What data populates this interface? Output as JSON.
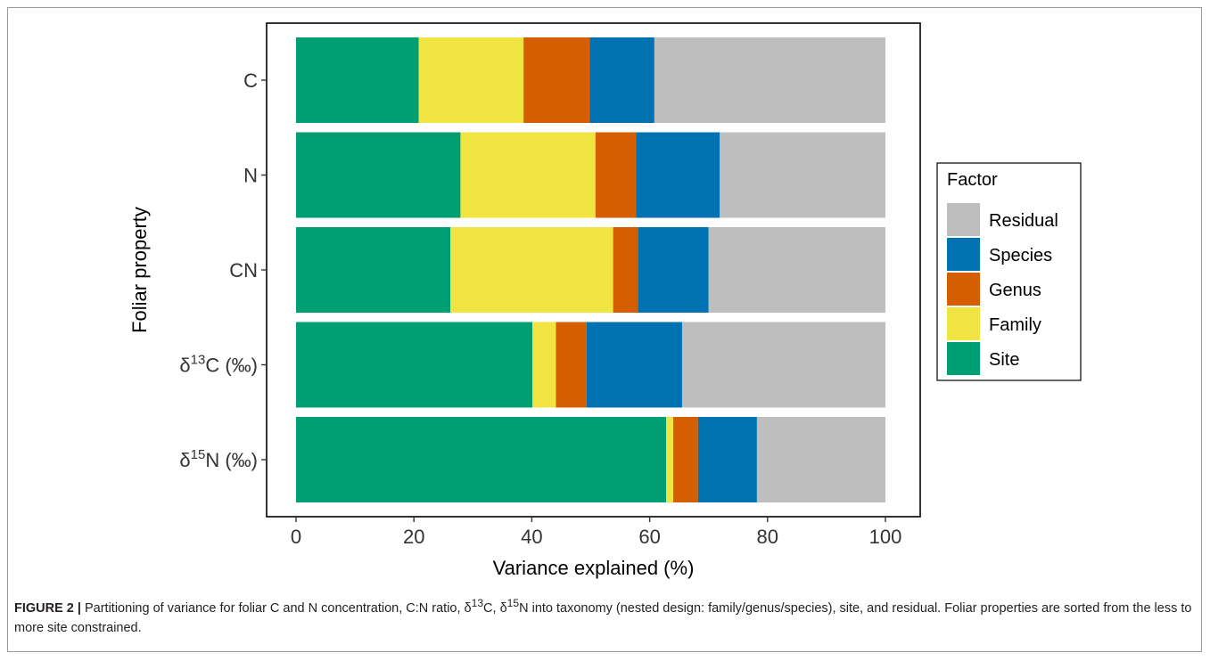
{
  "chart_data": {
    "type": "bar",
    "orientation": "horizontal",
    "stacked": true,
    "xlabel": "Variance explained (%)",
    "ylabel": "Foliar property",
    "xlim": [
      0,
      100
    ],
    "xticks": [
      "0",
      "20",
      "40",
      "60",
      "80",
      "100"
    ],
    "grid": false,
    "categories": [
      {
        "label": "C"
      },
      {
        "label": "N"
      },
      {
        "label": "CN"
      },
      {
        "pre": "δ",
        "sup": "13",
        "post": "C (‰)"
      },
      {
        "pre": "δ",
        "sup": "15",
        "post": "N (‰)"
      }
    ],
    "series": [
      {
        "name": "Site",
        "color": "#009E73",
        "values": [
          20.8,
          27.9,
          26.2,
          40.1,
          62.8
        ]
      },
      {
        "name": "Family",
        "color": "#F0E442",
        "values": [
          17.8,
          22.9,
          27.6,
          4.0,
          1.2
        ]
      },
      {
        "name": "Genus",
        "color": "#D55E00",
        "values": [
          11.2,
          6.9,
          4.2,
          5.2,
          4.2
        ]
      },
      {
        "name": "Species",
        "color": "#0072B2",
        "values": [
          11.0,
          14.2,
          12.0,
          16.2,
          10.0
        ]
      },
      {
        "name": "Residual",
        "color": "#BEBEBE",
        "values": [
          39.2,
          28.1,
          30.0,
          34.5,
          21.8
        ]
      }
    ],
    "legend": {
      "title": "Factor",
      "position": "right",
      "order": [
        "Residual",
        "Species",
        "Genus",
        "Family",
        "Site"
      ]
    }
  },
  "caption": {
    "label": "FIGURE 2 |",
    "text_a": " Partitioning of variance for foliar C and N concentration, C:N ratio, δ",
    "sup_a": "13",
    "text_b": "C, δ",
    "sup_b": "15",
    "text_c": "N into taxonomy (nested design: family/genus/species), site, and residual. Foliar properties are sorted from the less to more site constrained."
  }
}
